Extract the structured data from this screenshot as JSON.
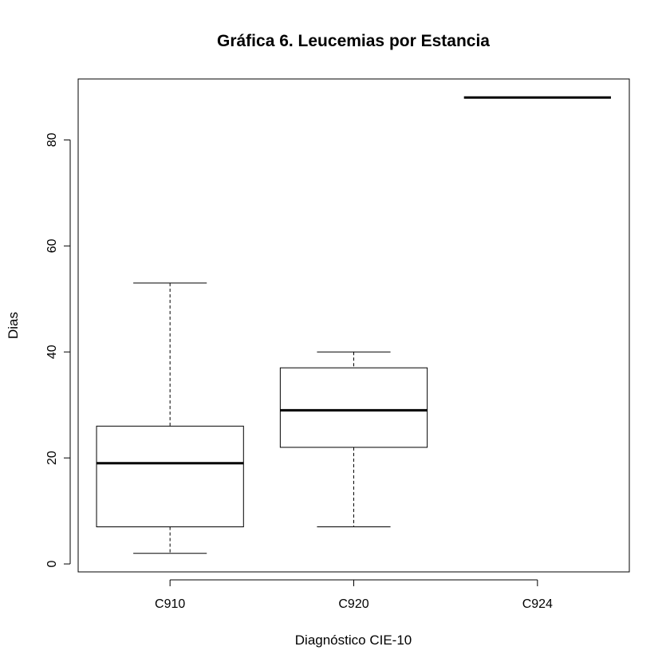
{
  "chart_data": {
    "type": "boxplot",
    "title": "Gráfica 6. Leucemias por Estancia",
    "xlabel": "Diagnóstico CIE-10",
    "ylabel": "Dias",
    "ylim": [
      -1.5,
      91.5
    ],
    "yticks": [
      0,
      20,
      40,
      60,
      80
    ],
    "ytick_labels": [
      "0",
      "20",
      "40",
      "60",
      "80"
    ],
    "categories": [
      "C910",
      "C920",
      "C924"
    ],
    "boxes": [
      {
        "category": "C910",
        "whisker_low": 2,
        "q1": 7,
        "median": 19,
        "q3": 26,
        "whisker_high": 53
      },
      {
        "category": "C920",
        "whisker_low": 7,
        "q1": 22,
        "median": 29,
        "q3": 37,
        "whisker_high": 40
      },
      {
        "category": "C924",
        "whisker_low": 88,
        "q1": 88,
        "median": 88,
        "q3": 88,
        "whisker_high": 88
      }
    ],
    "grid": false,
    "legend": "none",
    "colors": {
      "stroke": "#000000",
      "fill": "#ffffff"
    }
  }
}
